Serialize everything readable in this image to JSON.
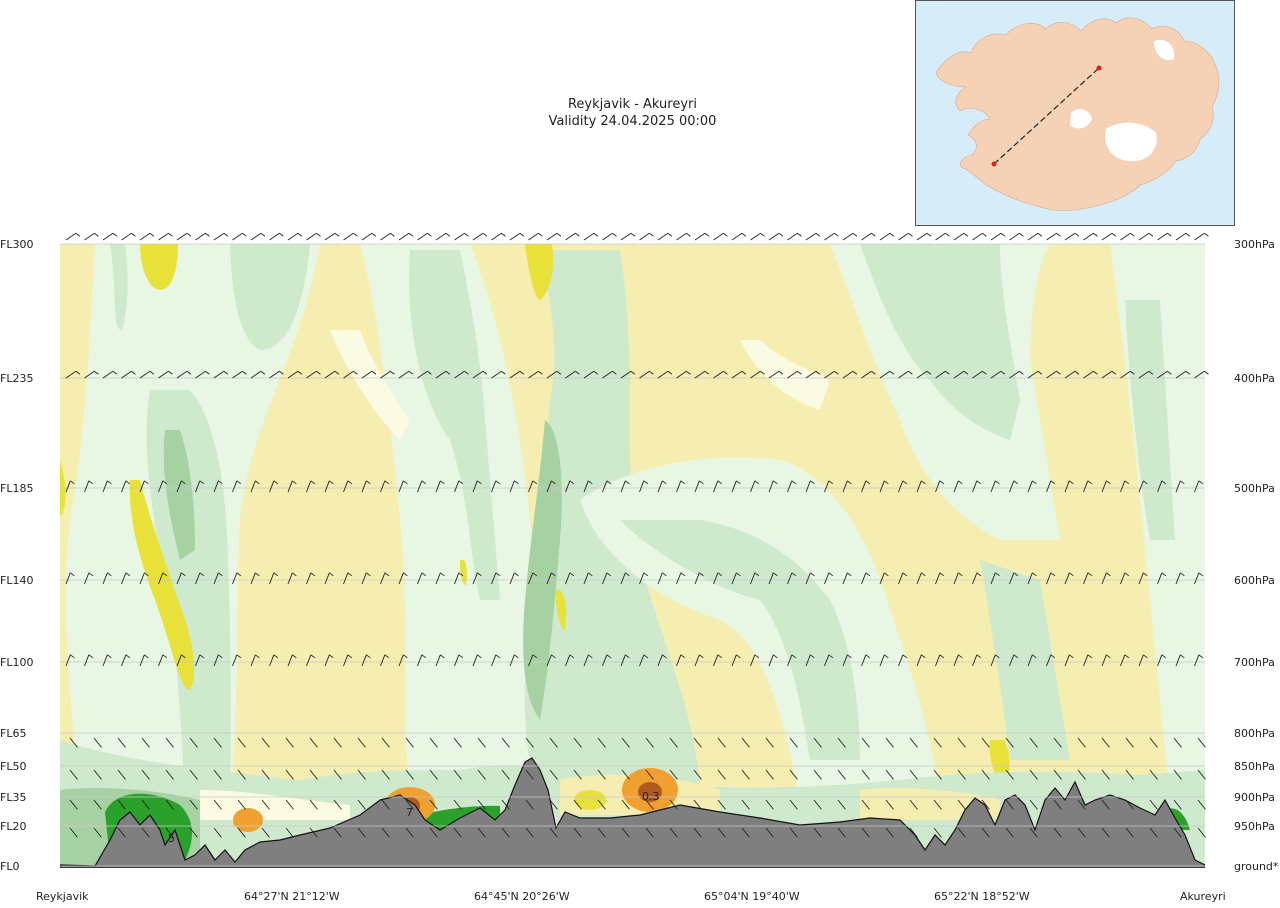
{
  "header": {
    "title": "Reykjavik - Akureyri",
    "validity": "Validity 24.04.2025 00:00"
  },
  "chart_data": {
    "type": "heatmap",
    "title": "Reykjavik - Akureyri",
    "subtitle": "Validity 24.04.2025 00:00",
    "left_axis_ticks": [
      "FL300",
      "FL235",
      "FL185",
      "FL140",
      "FL100",
      "FL65",
      "FL50",
      "FL35",
      "FL20",
      "FL0"
    ],
    "right_axis_ticks": [
      "300hPa",
      "400hPa",
      "500hPa",
      "600hPa",
      "700hPa",
      "800hPa",
      "850hPa",
      "900hPa",
      "950hPa",
      "ground*"
    ],
    "x_axis_ticks": [
      "Reykjavik",
      "64°27'N 21°12'W",
      "64°45'N 20°26'W",
      "65°04'N 19°40'W",
      "65°22'N 18°52'W",
      "Akureyri"
    ],
    "contour_labels": [
      "5",
      "7",
      "0.3"
    ],
    "colors": {
      "yellow_light": "#f6eeb0",
      "yellow_strong": "#e8e13a",
      "cream": "#fbfae3",
      "green_pale": "#e8f6e4",
      "green_light": "#cfe9cd",
      "green_medium": "#a6d2a3",
      "green_dark": "#6fae6b",
      "green_strong": "#2aa12a",
      "orange": "#f0a030",
      "brown": "#b05a20",
      "terrain": "#7f7f7f",
      "inset_sea": "#d6ecf8",
      "inset_land": "#f5d2b5"
    }
  }
}
